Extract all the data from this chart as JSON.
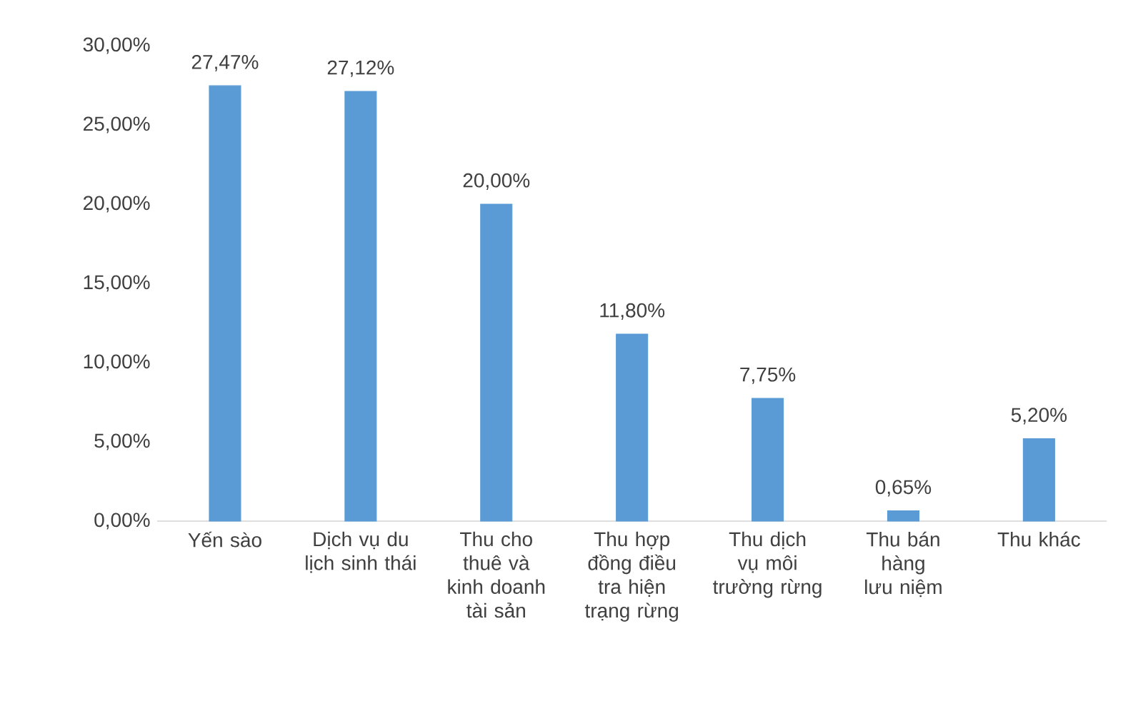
{
  "chart_data": {
    "type": "bar",
    "categories": [
      "Yến sào",
      "Dịch vụ du lịch sinh thái",
      "Thu cho thuê và kinh doanh tài sản",
      "Thu hợp đồng điều tra hiện trạng rừng",
      "Thu dịch vụ môi trường rừng",
      "Thu bán hàng lưu niệm",
      "Thu khác"
    ],
    "values": [
      27.47,
      27.12,
      20.0,
      11.8,
      7.75,
      0.65,
      5.2
    ],
    "value_labels": [
      "27,47%",
      "27,12%",
      "20,00%",
      "11,80%",
      "7,75%",
      "0,65%",
      "5,20%"
    ],
    "color": "#5b9bd5",
    "ylim": [
      0,
      30
    ],
    "yticks": [
      {
        "value": 0,
        "label": "0,00%"
      },
      {
        "value": 5,
        "label": "5,00%"
      },
      {
        "value": 10,
        "label": "10,00%"
      },
      {
        "value": 15,
        "label": "15,00%"
      },
      {
        "value": 20,
        "label": "20,00%"
      },
      {
        "value": 25,
        "label": "25,00%"
      },
      {
        "value": 30,
        "label": "30,00%"
      }
    ],
    "grid": false
  }
}
